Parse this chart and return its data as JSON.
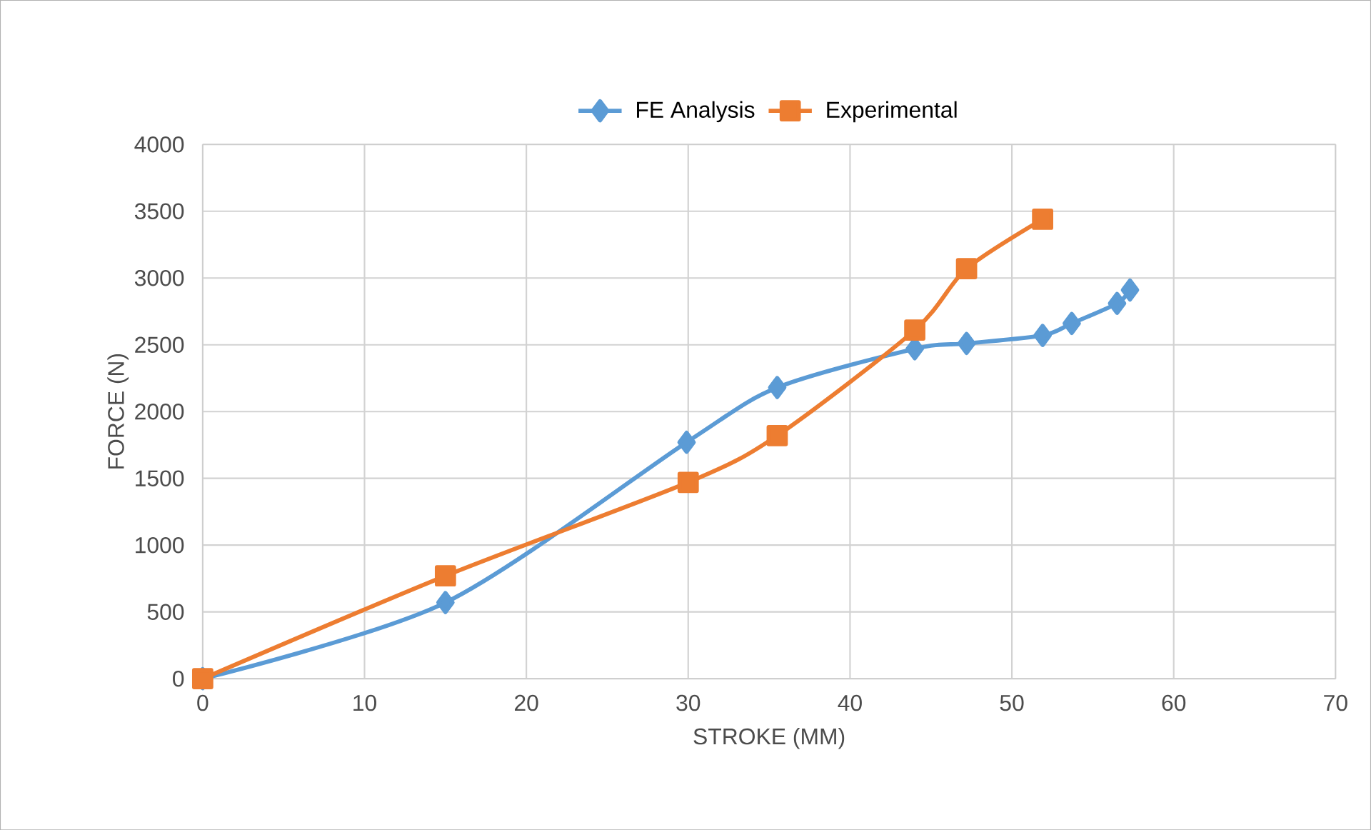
{
  "chart_data": {
    "type": "line",
    "xlabel": "STROKE (MM)",
    "ylabel": "FORCE (N)",
    "xlim": [
      0,
      70
    ],
    "xticks": [
      0,
      10,
      20,
      30,
      40,
      50,
      60,
      70
    ],
    "ylim": [
      0,
      4000
    ],
    "yticks": [
      0,
      500,
      1000,
      1500,
      2000,
      2500,
      3000,
      3500,
      4000
    ],
    "grid": true,
    "legend": "top",
    "series": [
      {
        "name": "FE Analysis",
        "color": "#5b9bd5",
        "marker": "diamond",
        "x": [
          0,
          15.0,
          29.9,
          35.5,
          44.0,
          47.2,
          51.9,
          53.7,
          56.5,
          57.3
        ],
        "values": [
          0,
          570,
          1770,
          2180,
          2470,
          2510,
          2570,
          2660,
          2810,
          2910
        ]
      },
      {
        "name": "Experimental",
        "color": "#ed7d31",
        "marker": "square",
        "x": [
          0,
          15.0,
          30.0,
          35.5,
          44.0,
          47.2,
          51.9
        ],
        "values": [
          0,
          770,
          1470,
          1820,
          2610,
          3070,
          3440
        ]
      }
    ]
  }
}
